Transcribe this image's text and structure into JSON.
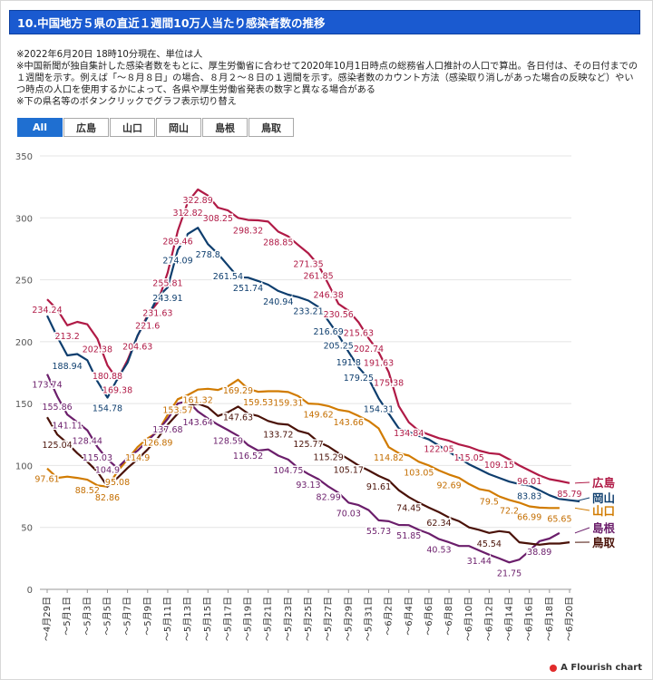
{
  "header": {
    "title": "10.中国地方５県の直近１週間10万人当たり感染者数の推移"
  },
  "notes": {
    "line1": "※2022年6月20日 18時10分現在、単位は人",
    "line2": "※中国新聞が独自集計した感染者数をもとに、厚生労働省に合わせて2020年10月1日時点の総務省人口推計の人口で算出。各日付は、その日付までの１週間を示す。例えば「～８月８日」の場合、８月２～８日の１週間を示す。感染者数のカウント方法（感染取り消しがあった場合の反映など）やいつ時点の人口を使用するかによって、各県や厚生労働省発表の数字と異なる場合がある",
    "line3": "※下の県名等のボタンクリックでグラフ表示切り替え"
  },
  "filters": [
    {
      "label": "All",
      "active": true
    },
    {
      "label": "広島",
      "active": false
    },
    {
      "label": "山口",
      "active": false
    },
    {
      "label": "岡山",
      "active": false
    },
    {
      "label": "島根",
      "active": false
    },
    {
      "label": "鳥取",
      "active": false
    }
  ],
  "credit": "A Flourish chart",
  "chart_data": {
    "type": "line",
    "title": "",
    "xlabel": "",
    "ylabel": "",
    "ylim": [
      0,
      350
    ],
    "yticks": [
      0,
      50,
      100,
      150,
      200,
      250,
      300,
      350
    ],
    "x_tick_labels": [
      "～4月29日",
      "～5月1日",
      "～5月3日",
      "～5月5日",
      "～5月7日",
      "～5月9日",
      "～5月11日",
      "～5月13日",
      "～5月15日",
      "～5月17日",
      "～5月19日",
      "～5月21日",
      "～5月23日",
      "～5月25日",
      "～5月27日",
      "～5月29日",
      "～5月31日",
      "～6月2日",
      "～6月4日",
      "～6月6日",
      "～6月8日",
      "～6月10日",
      "～6月12日",
      "～6月14日",
      "～6月16日",
      "～6月18日",
      "～6月20日"
    ],
    "x_start_day": 29,
    "series": [
      {
        "name": "広島",
        "color": "#b01a46",
        "label_color": "#b01a46",
        "values": [
          234.24,
          226,
          213.2,
          216,
          214,
          202.38,
          180.88,
          169.38,
          185,
          204.63,
          221.6,
          231.63,
          255.81,
          289.46,
          312.82,
          322.89,
          318,
          308.25,
          306,
          300,
          298.32,
          298,
          297,
          288.85,
          285,
          278,
          271.35,
          261.85,
          246.38,
          230.56,
          225,
          215.63,
          202.74,
          191.63,
          175.38,
          148,
          134.84,
          128,
          125,
          122.05,
          120,
          117,
          115.05,
          112,
          110,
          109.15,
          105,
          100,
          96.01,
          92,
          89,
          87.5,
          85.79
        ]
      },
      {
        "name": "岡山",
        "color": "#0e3e6e",
        "label_color": "#0e3e6e",
        "values": [
          221,
          204,
          188.94,
          190,
          185,
          168,
          154.78,
          170,
          183,
          205,
          220,
          236,
          243.91,
          274.09,
          287,
          292,
          278.8,
          271,
          261.54,
          252,
          251.74,
          249,
          246,
          240.94,
          238,
          236,
          233.21,
          228,
          216.69,
          205.25,
          191.8,
          179.25,
          170,
          154.31,
          142,
          130,
          127,
          124,
          121,
          116,
          111,
          106,
          101,
          97,
          93,
          90,
          87,
          85,
          83.83,
          80,
          76,
          73,
          72,
          71
        ]
      },
      {
        "name": "山口",
        "color": "#d17b00",
        "label_color": "#c46e00",
        "values": [
          97.61,
          90,
          91,
          90,
          88.52,
          84,
          82.86,
          95.08,
          105,
          114.9,
          122,
          126.89,
          141,
          153.57,
          157,
          161.32,
          162,
          161,
          164,
          169.29,
          162,
          159.53,
          160,
          160,
          159.31,
          156,
          150,
          149.62,
          148,
          145,
          143.66,
          140,
          136,
          130,
          114.82,
          110,
          108,
          103.05,
          100,
          96,
          92.69,
          90,
          85,
          81,
          79.5,
          75,
          72.2,
          70,
          66.99,
          66,
          65.65,
          65.65
        ]
      },
      {
        "name": "島根",
        "color": "#6b1e6b",
        "label_color": "#6b1e6b",
        "values": [
          173.74,
          155.86,
          141.11,
          135,
          128.44,
          115.03,
          104.9,
          98,
          106,
          112,
          120,
          128,
          137.68,
          150,
          152,
          143.64,
          138,
          133,
          128.59,
          124,
          116.52,
          112,
          113,
          108,
          104.75,
          98,
          93.13,
          89,
          82.99,
          78,
          70.03,
          68,
          64,
          55.73,
          55,
          52,
          51.85,
          48,
          45,
          40.53,
          38,
          35,
          35,
          31.44,
          28,
          25,
          21.75,
          24,
          31,
          38.89,
          41,
          45.5
        ]
      },
      {
        "name": "鳥取",
        "color": "#4a1208",
        "label_color": "#4a1208",
        "values": [
          139,
          125.04,
          118,
          110,
          103,
          95,
          83,
          90,
          98,
          105,
          113,
          122,
          133,
          142,
          148,
          150,
          147,
          140,
          143,
          147.63,
          142,
          140,
          136,
          133.72,
          133,
          128,
          125.77,
          119,
          115.29,
          110,
          105.17,
          100,
          96,
          91.61,
          88,
          80,
          74.45,
          70,
          66,
          62.34,
          58,
          55,
          50,
          48,
          45.54,
          47,
          46,
          38,
          37,
          36,
          37,
          37,
          38
        ]
      }
    ],
    "point_labels": {
      "広島": [
        [
          0,
          "234.24"
        ],
        [
          2,
          "213.2"
        ],
        [
          5,
          "202.38"
        ],
        [
          6,
          "180.88"
        ],
        [
          7,
          "169.38"
        ],
        [
          9,
          "204.63"
        ],
        [
          10,
          "221.6"
        ],
        [
          11,
          "231.63"
        ],
        [
          12,
          "255.81"
        ],
        [
          13,
          "289.46"
        ],
        [
          14,
          "312.82"
        ],
        [
          15,
          "322.89"
        ],
        [
          17,
          "308.25"
        ],
        [
          20,
          "298.32"
        ],
        [
          23,
          "288.85"
        ],
        [
          26,
          "271.35"
        ],
        [
          27,
          "261.85"
        ],
        [
          28,
          "246.38"
        ],
        [
          29,
          "230.56"
        ],
        [
          31,
          "215.63"
        ],
        [
          32,
          "202.74"
        ],
        [
          33,
          "191.63"
        ],
        [
          34,
          "175.38"
        ],
        [
          36,
          "134.84"
        ],
        [
          39,
          "122.05"
        ],
        [
          42,
          "115.05"
        ],
        [
          45,
          "109.15"
        ],
        [
          48,
          "96.01"
        ],
        [
          52,
          "85.79"
        ]
      ],
      "岡山": [
        [
          2,
          "188.94"
        ],
        [
          6,
          "154.78"
        ],
        [
          13,
          "274.09"
        ],
        [
          16,
          "278.8"
        ],
        [
          18,
          "261.54"
        ],
        [
          20,
          "251.74"
        ],
        [
          23,
          "240.94"
        ],
        [
          26,
          "233.21"
        ],
        [
          28,
          "216.69"
        ],
        [
          29,
          "205.25"
        ],
        [
          30,
          "191.8"
        ],
        [
          31,
          "179.25"
        ],
        [
          33,
          "154.31"
        ],
        [
          12,
          "243.91"
        ],
        [
          48,
          "83.83"
        ]
      ],
      "山口": [
        [
          0,
          "97.61"
        ],
        [
          4,
          "88.52"
        ],
        [
          6,
          "82.86"
        ],
        [
          7,
          "95.08"
        ],
        [
          9,
          "114.9"
        ],
        [
          11,
          "126.89"
        ],
        [
          13,
          "153.57"
        ],
        [
          15,
          "161.32"
        ],
        [
          19,
          "169.29"
        ],
        [
          21,
          "159.53"
        ],
        [
          24,
          "159.31"
        ],
        [
          27,
          "149.62"
        ],
        [
          30,
          "143.66"
        ],
        [
          34,
          "114.82"
        ],
        [
          37,
          "103.05"
        ],
        [
          40,
          "92.69"
        ],
        [
          44,
          "79.5"
        ],
        [
          46,
          "72.2"
        ],
        [
          48,
          "66.99"
        ],
        [
          51,
          "65.65"
        ]
      ],
      "島根": [
        [
          0,
          "173.74"
        ],
        [
          1,
          "155.86"
        ],
        [
          2,
          "141.11"
        ],
        [
          4,
          "128.44"
        ],
        [
          5,
          "115.03"
        ],
        [
          6,
          "104.9"
        ],
        [
          12,
          "137.68"
        ],
        [
          15,
          "143.64"
        ],
        [
          18,
          "128.59"
        ],
        [
          20,
          "116.52"
        ],
        [
          24,
          "104.75"
        ],
        [
          26,
          "93.13"
        ],
        [
          28,
          "82.99"
        ],
        [
          30,
          "70.03"
        ],
        [
          33,
          "55.73"
        ],
        [
          36,
          "51.85"
        ],
        [
          39,
          "40.53"
        ],
        [
          43,
          "31.44"
        ],
        [
          46,
          "21.75"
        ],
        [
          49,
          "38.89"
        ]
      ],
      "鳥取": [
        [
          1,
          "125.04"
        ],
        [
          19,
          "147.63"
        ],
        [
          23,
          "133.72"
        ],
        [
          26,
          "125.77"
        ],
        [
          28,
          "115.29"
        ],
        [
          30,
          "105.17"
        ],
        [
          33,
          "91.61"
        ],
        [
          36,
          "74.45"
        ],
        [
          39,
          "62.34"
        ],
        [
          44,
          "45.54"
        ]
      ]
    },
    "legend_labels": [
      "広島",
      "岡山",
      "山口",
      "島根",
      "鳥取"
    ]
  }
}
